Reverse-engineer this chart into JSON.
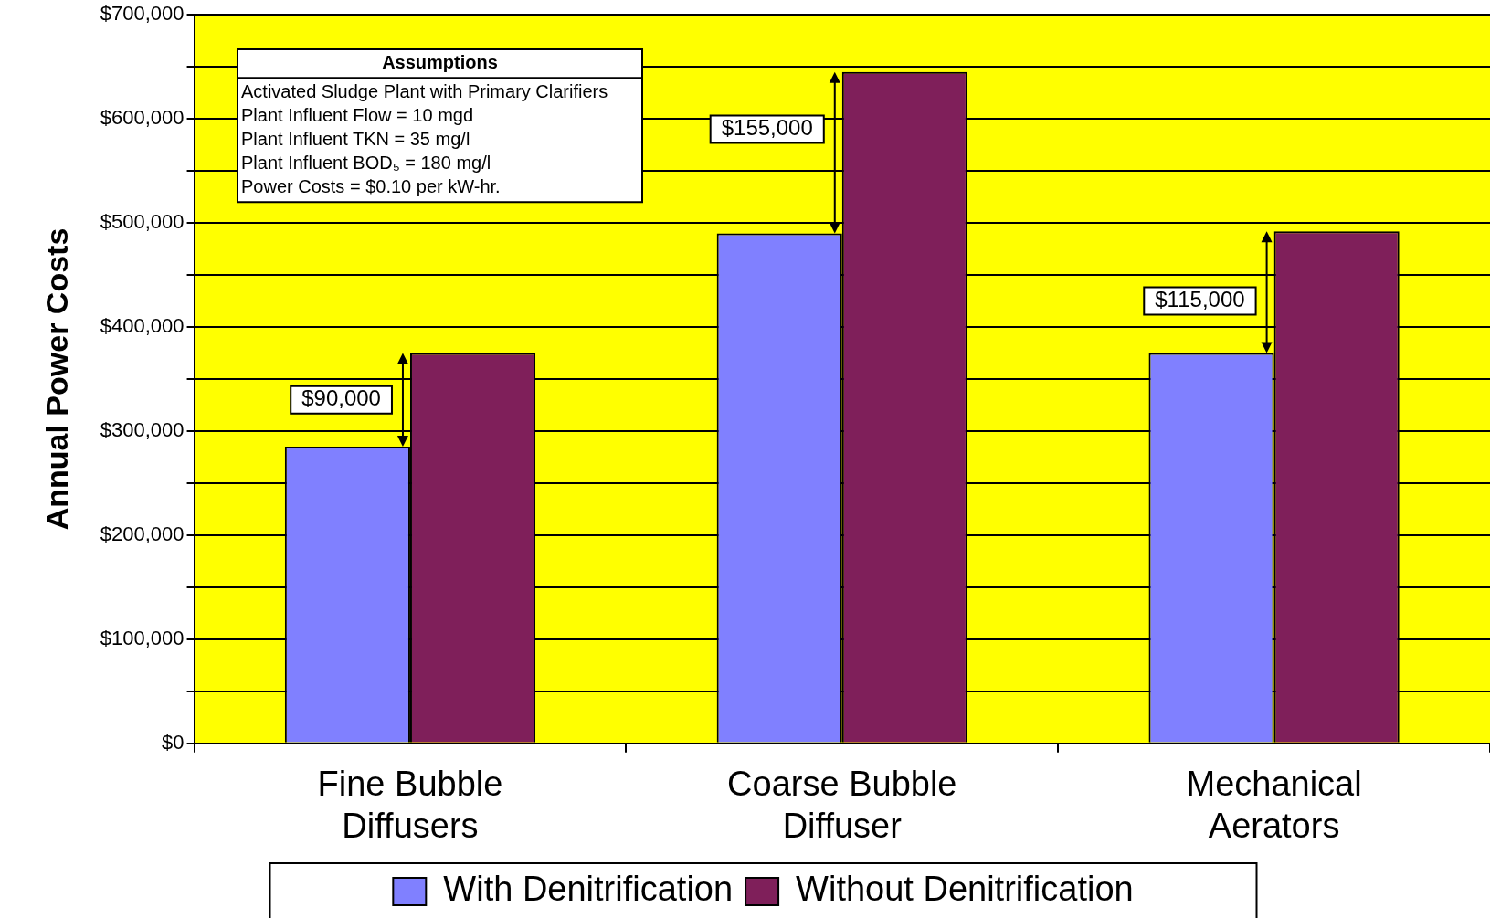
{
  "chart_data": {
    "type": "bar",
    "ylabel": "Annual Power Costs",
    "categories": [
      "Fine Bubble Diffusers",
      "Coarse Bubble Diffuser",
      "Mechanical Aerators"
    ],
    "series": [
      {
        "name": "With Denitrification",
        "color": "#8080ff",
        "values": [
          285000,
          490000,
          375000
        ]
      },
      {
        "name": "Without Denitrification",
        "color": "#7f1f5a",
        "values": [
          375000,
          645000,
          492000
        ]
      }
    ],
    "ylim": [
      0,
      700000
    ],
    "yticks": [
      {
        "value": 0,
        "label": "$0"
      },
      {
        "value": 50000,
        "label": null
      },
      {
        "value": 100000,
        "label": "$100,000"
      },
      {
        "value": 150000,
        "label": null
      },
      {
        "value": 200000,
        "label": "$200,000"
      },
      {
        "value": 250000,
        "label": null
      },
      {
        "value": 300000,
        "label": "$300,000"
      },
      {
        "value": 350000,
        "label": null
      },
      {
        "value": 400000,
        "label": "$400,000"
      },
      {
        "value": 450000,
        "label": null
      },
      {
        "value": 500000,
        "label": "$500,000"
      },
      {
        "value": 550000,
        "label": null
      },
      {
        "value": 600000,
        "label": "$600,000"
      },
      {
        "value": 650000,
        "label": null
      },
      {
        "value": 700000,
        "label": "$700,000"
      }
    ],
    "grid": "y",
    "legend": "bottom",
    "annotations": [
      "Assumptions\nActivated Sludge Plant with Primary Clarifiers\nPlant Influent Flow = 10 mgd\nPlant Influent TKN = 35 mg/l\nPlant Influent BOD₅ = 180 mg/l\nPower Costs = $0.10 per kW-hr.",
      {
        "text": "$90,000",
        "x": "Fine Bubble Diffusers",
        "y": 330000
      },
      {
        "text": "$155,000",
        "x": "Coarse Bubble Diffuser",
        "y": 590000
      },
      {
        "text": "$115,000",
        "x": "Mechanical Aerators",
        "y": 425000
      }
    ]
  }
}
